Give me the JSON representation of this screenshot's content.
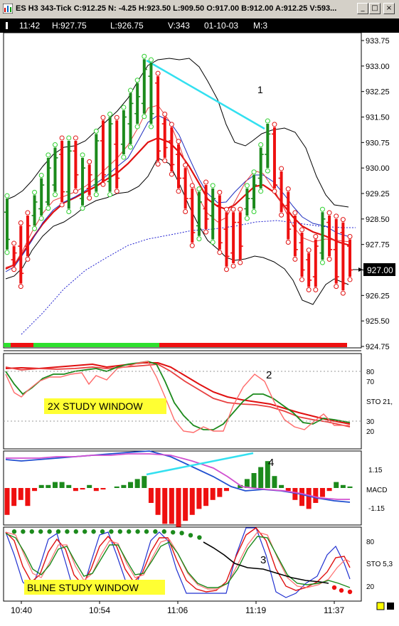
{
  "window": {
    "title": "ES H3 343-Tick C:912.25 N: -4.25 H:923.50 L:909.50 O:917.00 B:912.00 A:912.25 V:593...",
    "minimize": "_",
    "maximize": "□",
    "close": "×"
  },
  "infobar": {
    "time": "11:42",
    "high": "H:927.75",
    "low": "L:926.75",
    "volume": "V:343",
    "date": "01-10-03",
    "mode": "M:3"
  },
  "chart_data": [
    {
      "type": "candlestick",
      "panel": "price",
      "yaxis_ticks": [
        "933.75",
        "933.00",
        "932.25",
        "931.50",
        "930.75",
        "930.00",
        "929.25",
        "928.50",
        "927.75",
        "927.00",
        "926.25",
        "925.50",
        "924.75"
      ],
      "ylim": [
        924.75,
        933.75
      ],
      "last_price": "927.00",
      "annotation": "1",
      "bars": [
        {
          "o": 928.7,
          "h": 929.1,
          "l": 927.6,
          "c": 927.9,
          "d": "up"
        },
        {
          "o": 927.3,
          "h": 927.7,
          "l": 927.1,
          "c": 927.5,
          "d": "dn"
        },
        {
          "o": 927.7,
          "h": 928.3,
          "l": 926.6,
          "c": 926.9,
          "d": "dn"
        },
        {
          "o": 927.7,
          "h": 928.6,
          "l": 927.4,
          "c": 928.3,
          "d": "dn"
        },
        {
          "o": 928.6,
          "h": 929.2,
          "l": 928.3,
          "c": 929.0,
          "d": "up"
        },
        {
          "o": 928.8,
          "h": 929.7,
          "l": 928.6,
          "c": 929.5,
          "d": "up"
        },
        {
          "o": 929.0,
          "h": 930.3,
          "l": 928.9,
          "c": 930.0,
          "d": "up"
        },
        {
          "o": 929.5,
          "h": 930.6,
          "l": 929.3,
          "c": 930.3,
          "d": "up"
        },
        {
          "o": 930.4,
          "h": 930.8,
          "l": 929.0,
          "c": 929.3,
          "d": "dn"
        },
        {
          "o": 929.3,
          "h": 930.8,
          "l": 928.8,
          "c": 930.5,
          "d": "up"
        },
        {
          "o": 930.5,
          "h": 930.8,
          "l": 929.4,
          "c": 929.8,
          "d": "dn"
        },
        {
          "o": 929.1,
          "h": 930.3,
          "l": 928.9,
          "c": 930.0,
          "d": "up"
        },
        {
          "o": 929.4,
          "h": 930.1,
          "l": 929.2,
          "c": 929.8,
          "d": "dn"
        },
        {
          "o": 929.5,
          "h": 931.0,
          "l": 929.3,
          "c": 930.8,
          "d": "up"
        },
        {
          "o": 930.8,
          "h": 931.4,
          "l": 929.6,
          "c": 929.8,
          "d": "dn"
        },
        {
          "o": 929.6,
          "h": 931.5,
          "l": 929.3,
          "c": 931.3,
          "d": "up"
        },
        {
          "o": 930.7,
          "h": 931.4,
          "l": 929.4,
          "c": 929.7,
          "d": "dn"
        },
        {
          "o": 930.7,
          "h": 931.7,
          "l": 930.4,
          "c": 931.5,
          "d": "up"
        },
        {
          "o": 931.3,
          "h": 932.2,
          "l": 930.7,
          "c": 931.9,
          "d": "up"
        },
        {
          "o": 931.6,
          "h": 932.5,
          "l": 931.3,
          "c": 932.1,
          "d": "up"
        },
        {
          "o": 931.9,
          "h": 933.2,
          "l": 931.6,
          "c": 932.9,
          "d": "up"
        },
        {
          "o": 932.7,
          "h": 933.1,
          "l": 931.3,
          "c": 931.6,
          "d": "up"
        },
        {
          "o": 932.5,
          "h": 932.7,
          "l": 930.2,
          "c": 930.5,
          "d": "dn"
        },
        {
          "o": 931.3,
          "h": 931.5,
          "l": 930.3,
          "c": 930.6,
          "d": "dn"
        },
        {
          "o": 930.8,
          "h": 931.2,
          "l": 929.9,
          "c": 930.1,
          "d": "dn"
        },
        {
          "o": 930.4,
          "h": 930.7,
          "l": 929.4,
          "c": 929.7,
          "d": "dn"
        },
        {
          "o": 929.7,
          "h": 930.0,
          "l": 928.8,
          "c": 929.1,
          "d": "dn"
        },
        {
          "o": 929.1,
          "h": 929.4,
          "l": 927.8,
          "c": 928.1,
          "d": "dn"
        },
        {
          "o": 928.3,
          "h": 929.3,
          "l": 928.0,
          "c": 929.0,
          "d": "up"
        },
        {
          "o": 928.8,
          "h": 929.5,
          "l": 928.2,
          "c": 928.5,
          "d": "dn"
        },
        {
          "o": 928.6,
          "h": 929.4,
          "l": 927.9,
          "c": 929.1,
          "d": "up"
        },
        {
          "o": 928.9,
          "h": 929.2,
          "l": 927.6,
          "c": 927.8,
          "d": "dn"
        },
        {
          "o": 928.2,
          "h": 928.7,
          "l": 927.1,
          "c": 927.4,
          "d": "dn"
        },
        {
          "o": 927.5,
          "h": 928.7,
          "l": 927.2,
          "c": 928.4,
          "d": "dn"
        },
        {
          "o": 928.4,
          "h": 928.7,
          "l": 927.3,
          "c": 927.7,
          "d": "dn"
        },
        {
          "o": 928.8,
          "h": 929.4,
          "l": 928.6,
          "c": 929.1,
          "d": "up"
        },
        {
          "o": 929.1,
          "h": 929.8,
          "l": 928.8,
          "c": 929.5,
          "d": "up"
        },
        {
          "o": 929.7,
          "h": 930.6,
          "l": 929.4,
          "c": 930.4,
          "d": "up"
        },
        {
          "o": 930.4,
          "h": 931.3,
          "l": 930.0,
          "c": 931.0,
          "d": "up"
        },
        {
          "o": 931.0,
          "h": 931.2,
          "l": 929.4,
          "c": 929.5,
          "d": "dn"
        },
        {
          "o": 929.7,
          "h": 929.9,
          "l": 928.7,
          "c": 928.9,
          "d": "dn"
        },
        {
          "o": 928.9,
          "h": 929.3,
          "l": 927.9,
          "c": 928.2,
          "d": "dn"
        },
        {
          "o": 928.3,
          "h": 928.6,
          "l": 927.4,
          "c": 927.6,
          "d": "dn"
        },
        {
          "o": 927.8,
          "h": 928.1,
          "l": 926.8,
          "c": 927.0,
          "d": "dn"
        },
        {
          "o": 927.3,
          "h": 927.5,
          "l": 926.5,
          "c": 926.7,
          "d": "dn"
        },
        {
          "o": 926.8,
          "h": 927.9,
          "l": 926.5,
          "c": 927.7,
          "d": "dn"
        },
        {
          "o": 927.5,
          "h": 928.7,
          "l": 927.3,
          "c": 928.5,
          "d": "up"
        },
        {
          "o": 928.4,
          "h": 928.6,
          "l": 927.4,
          "c": 927.6,
          "d": "dn"
        },
        {
          "o": 927.6,
          "h": 928.5,
          "l": 926.6,
          "c": 926.8,
          "d": "dn"
        },
        {
          "o": 928.1,
          "h": 928.4,
          "l": 926.4,
          "c": 926.6,
          "d": "dn"
        },
        {
          "o": 927.7,
          "h": 927.9,
          "l": 926.8,
          "c": 927.0,
          "d": "dn"
        }
      ],
      "trendline_y": [
        933.1,
        931.1
      ]
    },
    {
      "type": "line",
      "panel": "stochastic",
      "label": "2X STUDY WINDOW",
      "axis_label": "STO 21,",
      "yaxis_ticks": [
        "80",
        "70",
        "30",
        "20"
      ],
      "ylim": [
        0,
        100
      ],
      "annotation": "2"
    },
    {
      "type": "histogram",
      "panel": "macd",
      "axis_label": "MACD",
      "yaxis_ticks": [
        "1.15",
        "-1.15"
      ],
      "annotation": "4"
    },
    {
      "type": "line",
      "panel": "bline",
      "label": "BLINE STUDY WINDOW",
      "axis_label": "STO 5,3",
      "yaxis_ticks": [
        "80",
        "20"
      ],
      "ylim": [
        0,
        100
      ],
      "annotation": "3"
    }
  ],
  "time_axis": [
    "10:40",
    "10:54",
    "11:06",
    "11:19",
    "11:37"
  ]
}
